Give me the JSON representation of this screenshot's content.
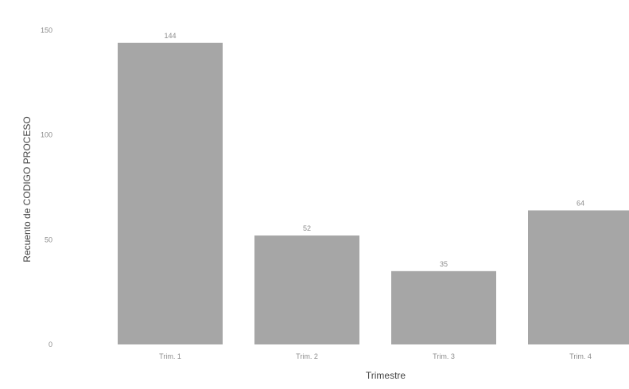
{
  "chart_data": {
    "type": "bar",
    "xlabel": "Trimestre",
    "ylabel": "Recuento de CODIGO PROCESO",
    "categories": [
      "Trim. 1",
      "Trim. 2",
      "Trim. 3",
      "Trim. 4"
    ],
    "values": [
      144,
      52,
      35,
      64
    ],
    "data_labels": [
      "144",
      "52",
      "35",
      "64"
    ],
    "ylim": [
      0,
      150
    ],
    "yticks": [
      0,
      50,
      100,
      150
    ],
    "grid": false,
    "legend": "none",
    "colors": {
      "bar": "#a6a6a6",
      "text": "#8c8c8c",
      "axis_title": "#444444"
    }
  }
}
